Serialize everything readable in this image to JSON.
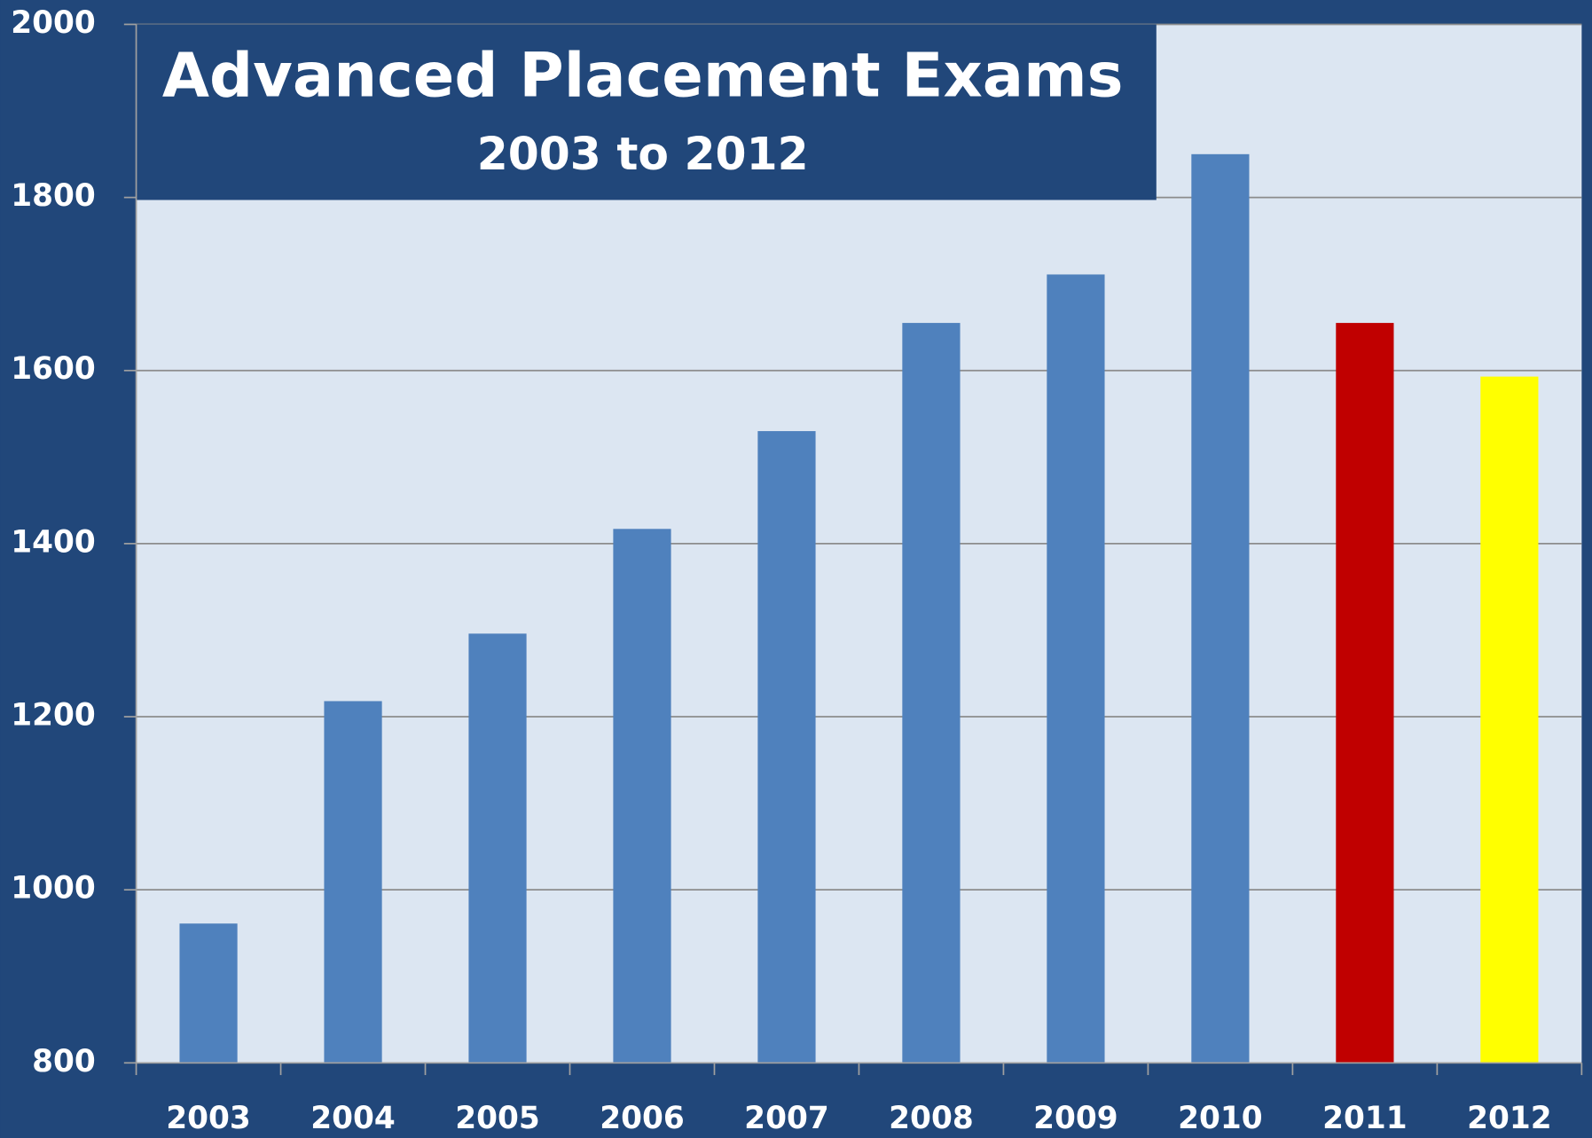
{
  "chart_data": {
    "type": "bar",
    "title": "Advanced Placement Exams",
    "subtitle": "2003 to 2012",
    "categories": [
      "2003",
      "2004",
      "2005",
      "2006",
      "2007",
      "2008",
      "2009",
      "2010",
      "2011",
      "2012"
    ],
    "values": [
      961,
      1218,
      1296,
      1417,
      1530,
      1655,
      1711,
      1850,
      1655,
      1593
    ],
    "colors": [
      "#4f81bd",
      "#4f81bd",
      "#4f81bd",
      "#4f81bd",
      "#4f81bd",
      "#4f81bd",
      "#4f81bd",
      "#4f81bd",
      "#c00000",
      "#ffff00"
    ],
    "ylim": [
      800,
      2000
    ],
    "yticks": [
      800,
      1000,
      1200,
      1400,
      1600,
      1800,
      2000
    ],
    "grid": true
  }
}
